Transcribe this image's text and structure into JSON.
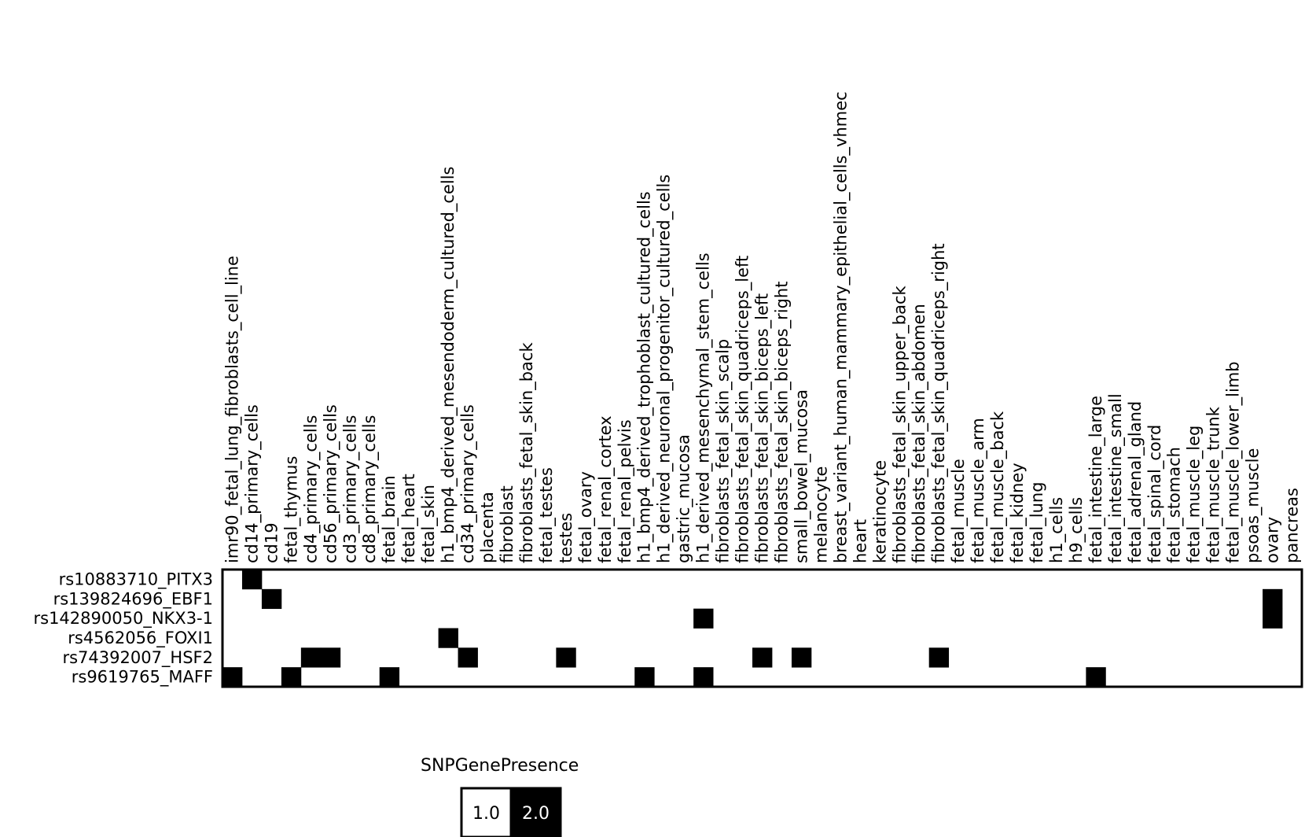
{
  "chart_data": {
    "type": "heatmap",
    "title": "",
    "xlabel": "",
    "ylabel": "",
    "columns": [
      "imr90_fetal_lung_fibroblasts_cell_line",
      "cd14_primary_cells",
      "cd19",
      "fetal_thymus",
      "cd4_primary_cells",
      "cd56_primary_cells",
      "cd3_primary_cells",
      "cd8_primary_cells",
      "fetal_brain",
      "fetal_heart",
      "fetal_skin",
      "h1_bmp4_derived_mesendoderm_cultured_cells",
      "cd34_primary_cells",
      "placenta",
      "fibroblast",
      "fibroblasts_fetal_skin_back",
      "fetal_testes",
      "testes",
      "fetal_ovary",
      "fetal_renal_cortex",
      "fetal_renal_pelvis",
      "h1_bmp4_derived_trophoblast_cultured_cells",
      "h1_derived_neuronal_progenitor_cultured_cells",
      "gastric_mucosa",
      "h1_derived_mesenchymal_stem_cells",
      "fibroblasts_fetal_skin_scalp",
      "fibroblasts_fetal_skin_quadriceps_left",
      "fibroblasts_fetal_skin_biceps_left",
      "fibroblasts_fetal_skin_biceps_right",
      "small_bowel_mucosa",
      "melanocyte",
      "breast_variant_human_mammary_epithelial_cells_vhmec",
      "heart",
      "keratinocyte",
      "fibroblasts_fetal_skin_upper_back",
      "fibroblasts_fetal_skin_abdomen",
      "fibroblasts_fetal_skin_quadriceps_right",
      "fetal_muscle",
      "fetal_muscle_arm",
      "fetal_muscle_back",
      "fetal_kidney",
      "fetal_lung",
      "h1_cells",
      "h9_cells",
      "fetal_intestine_large",
      "fetal_intestine_small",
      "fetal_adrenal_gland",
      "fetal_spinal_cord",
      "fetal_stomach",
      "fetal_muscle_leg",
      "fetal_muscle_trunk",
      "fetal_muscle_lower_limb",
      "psoas_muscle",
      "ovary",
      "pancreas"
    ],
    "rows": [
      "rs10883710_PITX3",
      "rs139824696_EBF1",
      "rs142890050_NKX3-1",
      "rs4562056_FOXI1",
      "rs74392007_HSF2",
      "rs9619765_MAFF"
    ],
    "cells": [
      {
        "row": 0,
        "col": 1,
        "value": 2.0
      },
      {
        "row": 1,
        "col": 2,
        "value": 2.0
      },
      {
        "row": 1,
        "col": 53,
        "value": 2.0
      },
      {
        "row": 2,
        "col": 24,
        "value": 2.0
      },
      {
        "row": 2,
        "col": 53,
        "value": 2.0
      },
      {
        "row": 3,
        "col": 11,
        "value": 2.0
      },
      {
        "row": 4,
        "col": 4,
        "value": 2.0
      },
      {
        "row": 4,
        "col": 5,
        "value": 2.0
      },
      {
        "row": 4,
        "col": 12,
        "value": 2.0
      },
      {
        "row": 4,
        "col": 17,
        "value": 2.0
      },
      {
        "row": 4,
        "col": 27,
        "value": 2.0
      },
      {
        "row": 4,
        "col": 29,
        "value": 2.0
      },
      {
        "row": 4,
        "col": 36,
        "value": 2.0
      },
      {
        "row": 5,
        "col": 0,
        "value": 2.0
      },
      {
        "row": 5,
        "col": 3,
        "value": 2.0
      },
      {
        "row": 5,
        "col": 8,
        "value": 2.0
      },
      {
        "row": 5,
        "col": 21,
        "value": 2.0
      },
      {
        "row": 5,
        "col": 24,
        "value": 2.0
      },
      {
        "row": 5,
        "col": 44,
        "value": 2.0
      }
    ],
    "default_value": 1.0,
    "legend": {
      "title": "SNPGenePresence",
      "placement": "bottom",
      "items": [
        {
          "label": "1.0",
          "value": 1.0,
          "color": "#ffffff"
        },
        {
          "label": "2.0",
          "value": 2.0,
          "color": "#000000"
        }
      ]
    }
  }
}
